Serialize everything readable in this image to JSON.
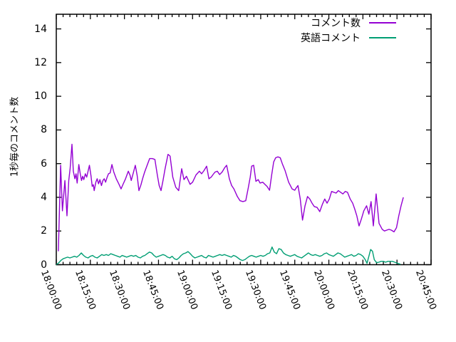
{
  "figure": {
    "background": "#ffffff",
    "axis_color": "#000000",
    "text_color": "#000000"
  },
  "chart_data": {
    "type": "line",
    "title": "",
    "xlabel": "",
    "ylabel": "1秒毎のコメント数",
    "grid": false,
    "legend_position": "top-right-inside",
    "xlim_minutes": [
      0,
      165
    ],
    "ylim": [
      0,
      14.87
    ],
    "x_tick_labels": [
      "18:00:00",
      "18:15:00",
      "18:30:00",
      "18:45:00",
      "19:00:00",
      "19:15:00",
      "19:30:00",
      "19:45:00",
      "20:00:00",
      "20:15:00",
      "20:30:00",
      "20:45:00"
    ],
    "x_tick_minutes": [
      0,
      15,
      30,
      45,
      60,
      75,
      90,
      105,
      120,
      135,
      150,
      165
    ],
    "x_minor_step_minutes": 3,
    "y_ticks": [
      0,
      2,
      4,
      6,
      8,
      10,
      12,
      14
    ],
    "series": [
      {
        "name": "コメント数",
        "color": "#9400d3",
        "points": [
          [
            0.9,
            0.8
          ],
          [
            1.9,
            5.9
          ],
          [
            2.7,
            3.2
          ],
          [
            3.8,
            5.0
          ],
          [
            4.7,
            2.9
          ],
          [
            5.5,
            5.0
          ],
          [
            6.1,
            5.7
          ],
          [
            6.9,
            7.15
          ],
          [
            7.5,
            5.55
          ],
          [
            8.2,
            5.1
          ],
          [
            8.7,
            5.4
          ],
          [
            9.2,
            4.85
          ],
          [
            9.9,
            5.95
          ],
          [
            10.6,
            5.35
          ],
          [
            11.1,
            5.0
          ],
          [
            11.6,
            5.25
          ],
          [
            12.1,
            5.05
          ],
          [
            12.8,
            5.4
          ],
          [
            13.4,
            5.2
          ],
          [
            14.0,
            5.55
          ],
          [
            14.6,
            5.9
          ],
          [
            15.3,
            5.25
          ],
          [
            15.8,
            4.65
          ],
          [
            16.3,
            4.75
          ],
          [
            16.7,
            4.4
          ],
          [
            17.4,
            4.9
          ],
          [
            18.0,
            5.1
          ],
          [
            18.6,
            4.8
          ],
          [
            19.2,
            5.05
          ],
          [
            19.9,
            4.7
          ],
          [
            20.5,
            5.0
          ],
          [
            21.1,
            5.1
          ],
          [
            21.7,
            4.9
          ],
          [
            22.4,
            5.2
          ],
          [
            23.0,
            5.4
          ],
          [
            23.7,
            5.45
          ],
          [
            24.5,
            5.95
          ],
          [
            25.3,
            5.5
          ],
          [
            26.4,
            5.1
          ],
          [
            27.5,
            4.8
          ],
          [
            28.5,
            4.5
          ],
          [
            29.5,
            4.8
          ],
          [
            30.5,
            5.1
          ],
          [
            31.7,
            5.55
          ],
          [
            32.5,
            5.3
          ],
          [
            33.0,
            5.0
          ],
          [
            34.0,
            5.5
          ],
          [
            34.8,
            5.9
          ],
          [
            35.6,
            5.3
          ],
          [
            36.4,
            4.4
          ],
          [
            37.3,
            4.75
          ],
          [
            38.0,
            5.1
          ],
          [
            38.9,
            5.5
          ],
          [
            40.0,
            5.9
          ],
          [
            41.1,
            6.3
          ],
          [
            42.3,
            6.3
          ],
          [
            43.4,
            6.25
          ],
          [
            44.5,
            5.3
          ],
          [
            45.3,
            4.7
          ],
          [
            46.1,
            4.4
          ],
          [
            47.0,
            5.0
          ],
          [
            47.9,
            5.7
          ],
          [
            49.2,
            6.55
          ],
          [
            50.1,
            6.45
          ],
          [
            51.3,
            5.2
          ],
          [
            52.6,
            4.6
          ],
          [
            53.9,
            4.4
          ],
          [
            55.2,
            5.7
          ],
          [
            56.2,
            5.05
          ],
          [
            57.3,
            5.25
          ],
          [
            58.9,
            4.77
          ],
          [
            60.0,
            4.9
          ],
          [
            61.5,
            5.33
          ],
          [
            63.0,
            5.55
          ],
          [
            64.0,
            5.4
          ],
          [
            65.1,
            5.6
          ],
          [
            66.2,
            5.85
          ],
          [
            67.2,
            5.1
          ],
          [
            68.2,
            5.2
          ],
          [
            69.0,
            5.35
          ],
          [
            69.9,
            5.5
          ],
          [
            70.9,
            5.55
          ],
          [
            71.9,
            5.35
          ],
          [
            73.0,
            5.5
          ],
          [
            74.1,
            5.75
          ],
          [
            75.0,
            5.9
          ],
          [
            76.2,
            5.1
          ],
          [
            77.2,
            4.7
          ],
          [
            78.2,
            4.5
          ],
          [
            79.7,
            4.05
          ],
          [
            80.9,
            3.8
          ],
          [
            82.2,
            3.75
          ],
          [
            83.4,
            3.8
          ],
          [
            84.5,
            4.55
          ],
          [
            85.4,
            5.2
          ],
          [
            86.0,
            5.85
          ],
          [
            86.9,
            5.9
          ],
          [
            87.9,
            4.95
          ],
          [
            88.9,
            5.05
          ],
          [
            89.7,
            4.85
          ],
          [
            90.9,
            4.9
          ],
          [
            92.0,
            4.75
          ],
          [
            92.8,
            4.65
          ],
          [
            93.9,
            4.42
          ],
          [
            94.8,
            5.3
          ],
          [
            95.7,
            6.1
          ],
          [
            96.6,
            6.35
          ],
          [
            97.6,
            6.4
          ],
          [
            98.6,
            6.35
          ],
          [
            99.5,
            6.0
          ],
          [
            100.7,
            5.6
          ],
          [
            102.3,
            4.9
          ],
          [
            103.8,
            4.5
          ],
          [
            105.0,
            4.42
          ],
          [
            105.6,
            4.55
          ],
          [
            106.4,
            4.7
          ],
          [
            107.4,
            3.9
          ],
          [
            108.4,
            2.65
          ],
          [
            109.5,
            3.5
          ],
          [
            110.6,
            4.05
          ],
          [
            111.6,
            3.9
          ],
          [
            112.6,
            3.65
          ],
          [
            113.6,
            3.45
          ],
          [
            114.8,
            3.4
          ],
          [
            116.0,
            3.15
          ],
          [
            117.2,
            3.6
          ],
          [
            118.2,
            3.9
          ],
          [
            119.2,
            3.65
          ],
          [
            120.2,
            3.9
          ],
          [
            121.2,
            4.35
          ],
          [
            122.2,
            4.3
          ],
          [
            123.2,
            4.25
          ],
          [
            124.2,
            4.4
          ],
          [
            125.2,
            4.3
          ],
          [
            126.2,
            4.2
          ],
          [
            127.2,
            4.35
          ],
          [
            128.2,
            4.3
          ],
          [
            129.4,
            3.9
          ],
          [
            130.5,
            3.65
          ],
          [
            131.4,
            3.3
          ],
          [
            132.3,
            2.9
          ],
          [
            133.3,
            2.3
          ],
          [
            134.3,
            2.7
          ],
          [
            135.4,
            3.2
          ],
          [
            136.6,
            3.5
          ],
          [
            137.6,
            3.0
          ],
          [
            138.6,
            3.75
          ],
          [
            139.6,
            2.3
          ],
          [
            140.8,
            4.2
          ],
          [
            142.1,
            2.45
          ],
          [
            143.5,
            2.1
          ],
          [
            144.5,
            2.0
          ],
          [
            145.5,
            2.05
          ],
          [
            146.5,
            2.1
          ],
          [
            147.5,
            2.05
          ],
          [
            148.7,
            1.95
          ],
          [
            149.8,
            2.2
          ],
          [
            150.8,
            2.9
          ],
          [
            151.8,
            3.5
          ],
          [
            152.8,
            4.0
          ]
        ]
      },
      {
        "name": "英語コメント",
        "color": "#009e73",
        "points": [
          [
            0,
            0
          ],
          [
            1,
            0.1
          ],
          [
            2,
            0.25
          ],
          [
            3,
            0.35
          ],
          [
            4,
            0.4
          ],
          [
            5,
            0.45
          ],
          [
            6,
            0.4
          ],
          [
            7,
            0.45
          ],
          [
            8,
            0.5
          ],
          [
            9,
            0.45
          ],
          [
            10,
            0.55
          ],
          [
            11,
            0.7
          ],
          [
            12,
            0.55
          ],
          [
            13,
            0.45
          ],
          [
            14,
            0.4
          ],
          [
            15,
            0.5
          ],
          [
            16,
            0.55
          ],
          [
            17,
            0.45
          ],
          [
            18,
            0.4
          ],
          [
            19,
            0.5
          ],
          [
            20,
            0.6
          ],
          [
            21,
            0.55
          ],
          [
            22,
            0.6
          ],
          [
            23,
            0.55
          ],
          [
            24,
            0.65
          ],
          [
            25,
            0.6
          ],
          [
            26,
            0.55
          ],
          [
            27,
            0.5
          ],
          [
            28,
            0.45
          ],
          [
            29,
            0.55
          ],
          [
            30,
            0.5
          ],
          [
            31,
            0.45
          ],
          [
            32,
            0.5
          ],
          [
            33,
            0.55
          ],
          [
            34,
            0.5
          ],
          [
            35,
            0.55
          ],
          [
            36,
            0.45
          ],
          [
            37,
            0.4
          ],
          [
            38,
            0.5
          ],
          [
            39,
            0.55
          ],
          [
            40,
            0.65
          ],
          [
            41,
            0.75
          ],
          [
            42,
            0.7
          ],
          [
            43,
            0.55
          ],
          [
            44,
            0.45
          ],
          [
            45,
            0.5
          ],
          [
            46,
            0.55
          ],
          [
            47,
            0.6
          ],
          [
            48,
            0.55
          ],
          [
            49,
            0.45
          ],
          [
            50,
            0.4
          ],
          [
            51,
            0.5
          ],
          [
            52,
            0.35
          ],
          [
            53,
            0.3
          ],
          [
            54,
            0.4
          ],
          [
            55,
            0.55
          ],
          [
            56,
            0.65
          ],
          [
            57,
            0.7
          ],
          [
            58,
            0.78
          ],
          [
            59,
            0.65
          ],
          [
            60,
            0.5
          ],
          [
            61,
            0.4
          ],
          [
            62,
            0.45
          ],
          [
            63,
            0.5
          ],
          [
            64,
            0.55
          ],
          [
            65,
            0.45
          ],
          [
            66,
            0.4
          ],
          [
            67,
            0.55
          ],
          [
            68,
            0.5
          ],
          [
            69,
            0.45
          ],
          [
            70,
            0.5
          ],
          [
            71,
            0.55
          ],
          [
            72,
            0.6
          ],
          [
            73,
            0.55
          ],
          [
            74,
            0.6
          ],
          [
            75,
            0.55
          ],
          [
            76,
            0.5
          ],
          [
            77,
            0.45
          ],
          [
            78,
            0.55
          ],
          [
            79,
            0.5
          ],
          [
            80,
            0.4
          ],
          [
            81,
            0.3
          ],
          [
            82,
            0.25
          ],
          [
            83,
            0.3
          ],
          [
            84,
            0.4
          ],
          [
            85,
            0.5
          ],
          [
            86,
            0.55
          ],
          [
            87,
            0.5
          ],
          [
            88,
            0.45
          ],
          [
            89,
            0.5
          ],
          [
            90,
            0.55
          ],
          [
            91,
            0.5
          ],
          [
            92,
            0.55
          ],
          [
            93,
            0.65
          ],
          [
            94,
            0.7
          ],
          [
            95,
            1.05
          ],
          [
            96,
            0.75
          ],
          [
            97,
            0.65
          ],
          [
            98,
            0.95
          ],
          [
            99,
            0.9
          ],
          [
            100,
            0.7
          ],
          [
            101,
            0.6
          ],
          [
            102,
            0.55
          ],
          [
            103,
            0.5
          ],
          [
            104,
            0.55
          ],
          [
            105,
            0.6
          ],
          [
            106,
            0.5
          ],
          [
            107,
            0.45
          ],
          [
            108,
            0.4
          ],
          [
            109,
            0.5
          ],
          [
            110,
            0.6
          ],
          [
            111,
            0.7
          ],
          [
            112,
            0.6
          ],
          [
            113,
            0.55
          ],
          [
            114,
            0.6
          ],
          [
            115,
            0.55
          ],
          [
            116,
            0.5
          ],
          [
            117,
            0.55
          ],
          [
            118,
            0.65
          ],
          [
            119,
            0.7
          ],
          [
            120,
            0.6
          ],
          [
            121,
            0.55
          ],
          [
            122,
            0.5
          ],
          [
            123,
            0.6
          ],
          [
            124,
            0.7
          ],
          [
            125,
            0.65
          ],
          [
            126,
            0.55
          ],
          [
            127,
            0.45
          ],
          [
            128,
            0.5
          ],
          [
            129,
            0.55
          ],
          [
            130,
            0.6
          ],
          [
            131,
            0.5
          ],
          [
            132,
            0.55
          ],
          [
            133,
            0.65
          ],
          [
            134,
            0.6
          ],
          [
            135,
            0.5
          ],
          [
            136,
            0.3
          ],
          [
            136.8,
            0.08
          ],
          [
            137.6,
            0.5
          ],
          [
            138.4,
            0.9
          ],
          [
            139.2,
            0.8
          ],
          [
            140,
            0.3
          ],
          [
            141,
            0.12
          ],
          [
            142,
            0.15
          ],
          [
            143,
            0.2
          ],
          [
            144,
            0.2
          ],
          [
            145,
            0.15
          ],
          [
            146,
            0.2
          ],
          [
            147,
            0.2
          ],
          [
            148,
            0.2
          ],
          [
            149,
            0.15
          ],
          [
            150,
            0.1
          ],
          [
            151,
            0.05
          ],
          [
            151.5,
            0.02
          ]
        ]
      }
    ]
  }
}
